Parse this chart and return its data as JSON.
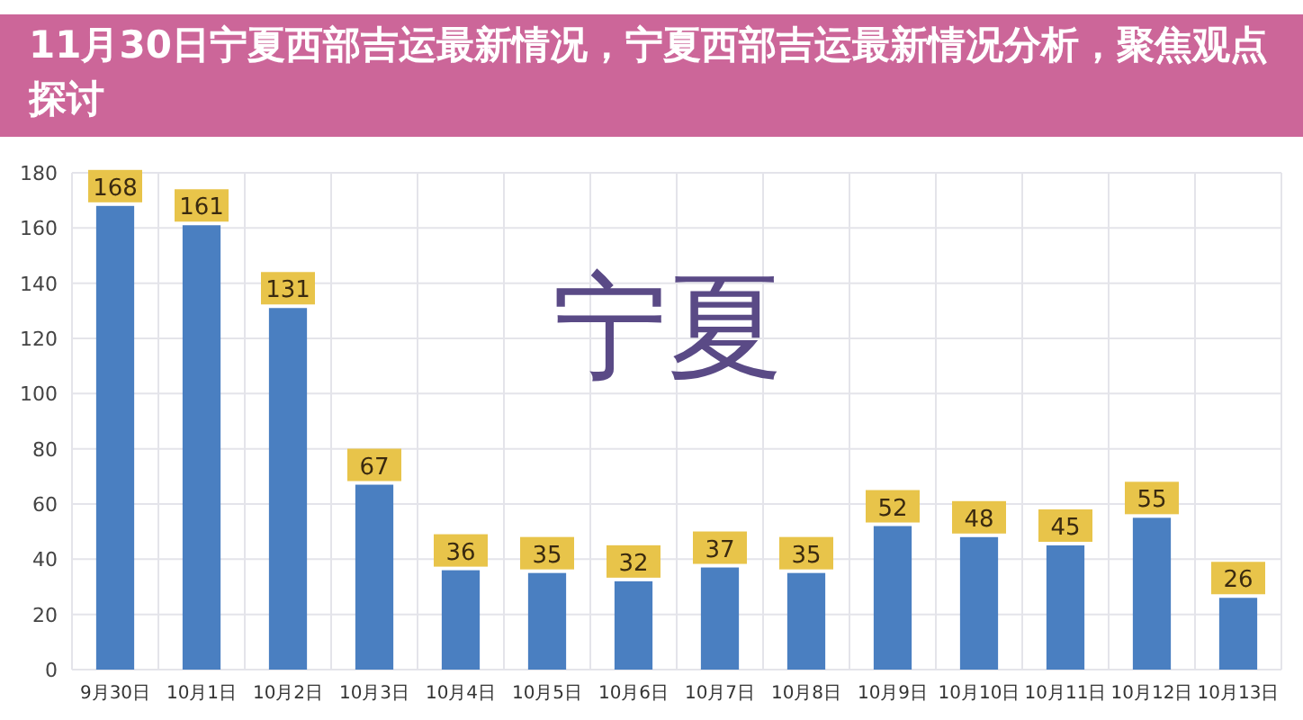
{
  "chart_data": {
    "type": "bar",
    "title": "11月30日宁夏西部吉运最新情况，宁夏西部吉运最新情况分析，聚焦观点探讨",
    "categories": [
      "9月30日",
      "10月1日",
      "10月2日",
      "10月3日",
      "10月4日",
      "10月5日",
      "10月6日",
      "10月7日",
      "10月8日",
      "10月9日",
      "10月10日",
      "10月11日",
      "10月12日",
      "10月13日"
    ],
    "values": [
      168,
      161,
      131,
      67,
      36,
      35,
      32,
      37,
      35,
      52,
      48,
      45,
      55,
      26
    ],
    "color": "#4a7fc1",
    "ylim": [
      0,
      180
    ],
    "yticks": [
      0,
      20,
      40,
      60,
      80,
      100,
      120,
      140,
      160,
      180
    ],
    "grid": true,
    "data_labels": true,
    "annotations": [
      "宁夏"
    ]
  }
}
